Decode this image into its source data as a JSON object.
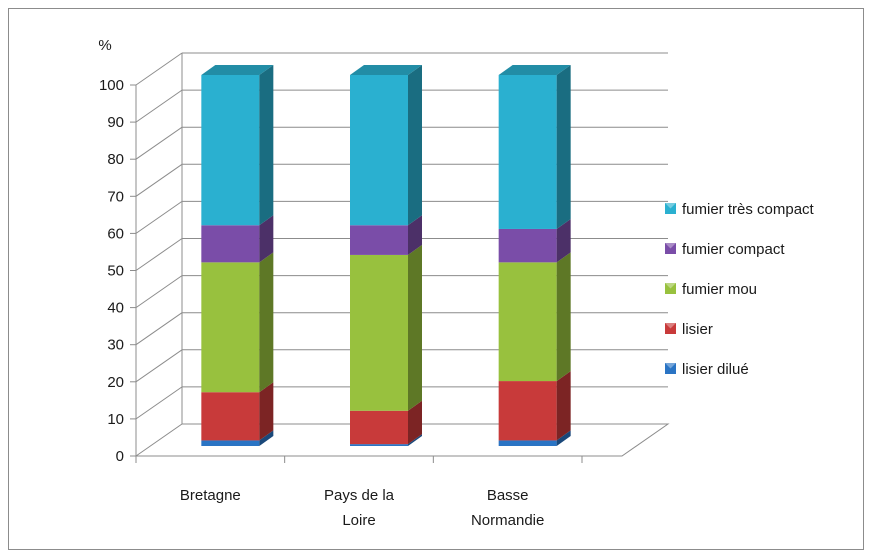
{
  "chart_data": {
    "type": "bar",
    "stacked": true,
    "three_d": true,
    "title": "",
    "ylabel": "%",
    "xlabel": "",
    "ylim": [
      0,
      100
    ],
    "yticks": [
      "0",
      "10",
      "20",
      "30",
      "40",
      "50",
      "60",
      "70",
      "80",
      "90",
      "100"
    ],
    "grid": true,
    "legend_position": "right",
    "categories": [
      [
        "Bretagne"
      ],
      [
        "Pays de la",
        "Loire"
      ],
      [
        "Basse",
        "Normandie"
      ]
    ],
    "series": [
      {
        "name": "lisier dilué",
        "color": "#2a74c4",
        "values": [
          1.5,
          0.5,
          1.5
        ]
      },
      {
        "name": "lisier",
        "color": "#c83a3a",
        "values": [
          13,
          9,
          16
        ]
      },
      {
        "name": "fumier mou",
        "color": "#98c13e",
        "values": [
          35,
          42,
          32
        ]
      },
      {
        "name": "fumier compact",
        "color": "#7a4da8",
        "values": [
          10,
          8,
          9
        ]
      },
      {
        "name": "fumier très compact",
        "color": "#2ab0d0",
        "values": [
          40.5,
          40.5,
          41.5
        ]
      }
    ]
  }
}
